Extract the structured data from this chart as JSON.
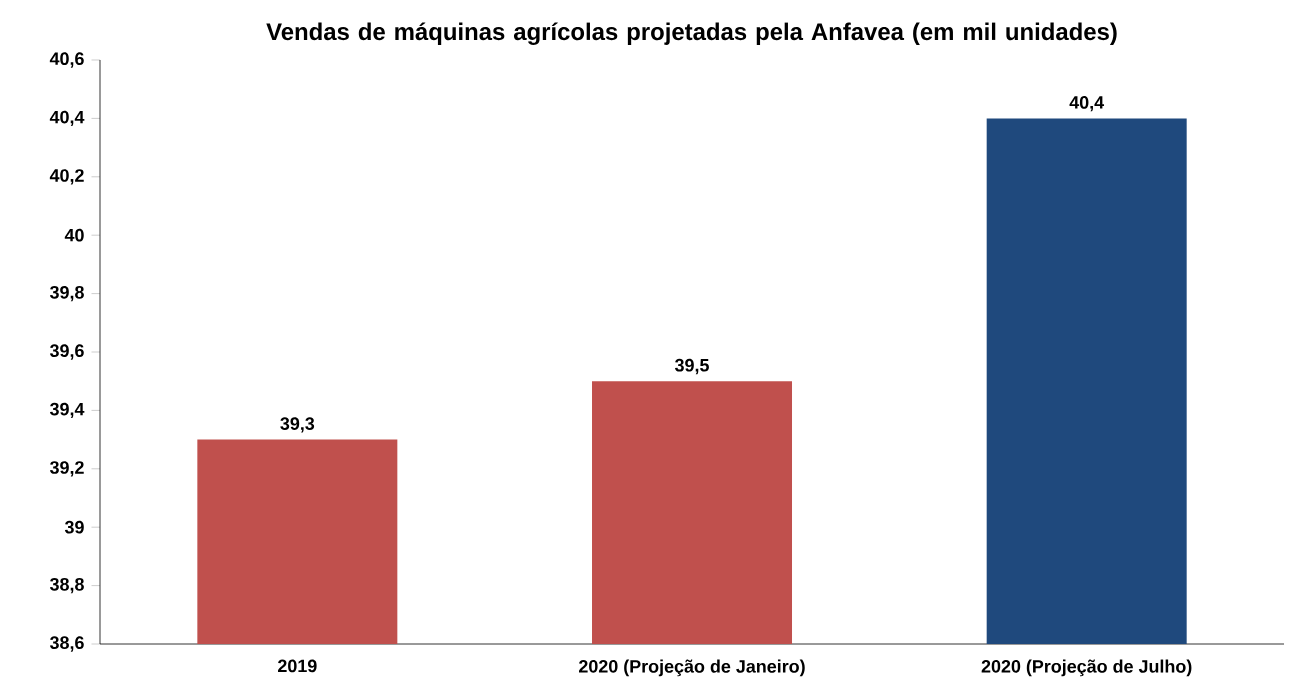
{
  "chart_data": {
    "type": "bar",
    "title": "Vendas de máquinas agrícolas projetadas pela Anfavea (em mil unidades)",
    "categories": [
      "2019",
      "2020 (Projeção de Janeiro)",
      "2020 (Projeção de Julho)"
    ],
    "values": [
      39.3,
      39.5,
      40.4
    ],
    "colors": [
      "#c0504d",
      "#c0504d",
      "#1f497d"
    ],
    "value_labels": [
      "39,3",
      "39,5",
      "40,4"
    ],
    "ylim": [
      38.6,
      40.6
    ],
    "yticks": [
      {
        "value": 38.6,
        "label": "38,6"
      },
      {
        "value": 38.8,
        "label": "38,8"
      },
      {
        "value": 39,
        "label": "39"
      },
      {
        "value": 39.2,
        "label": "39,2"
      },
      {
        "value": 39.4,
        "label": "39,4"
      },
      {
        "value": 39.6,
        "label": "39,6"
      },
      {
        "value": 39.8,
        "label": "39,8"
      },
      {
        "value": 40,
        "label": "40"
      },
      {
        "value": 40.2,
        "label": "40,2"
      },
      {
        "value": 40.4,
        "label": "40,4"
      },
      {
        "value": 40.6,
        "label": "40,6"
      }
    ],
    "grid": false
  }
}
